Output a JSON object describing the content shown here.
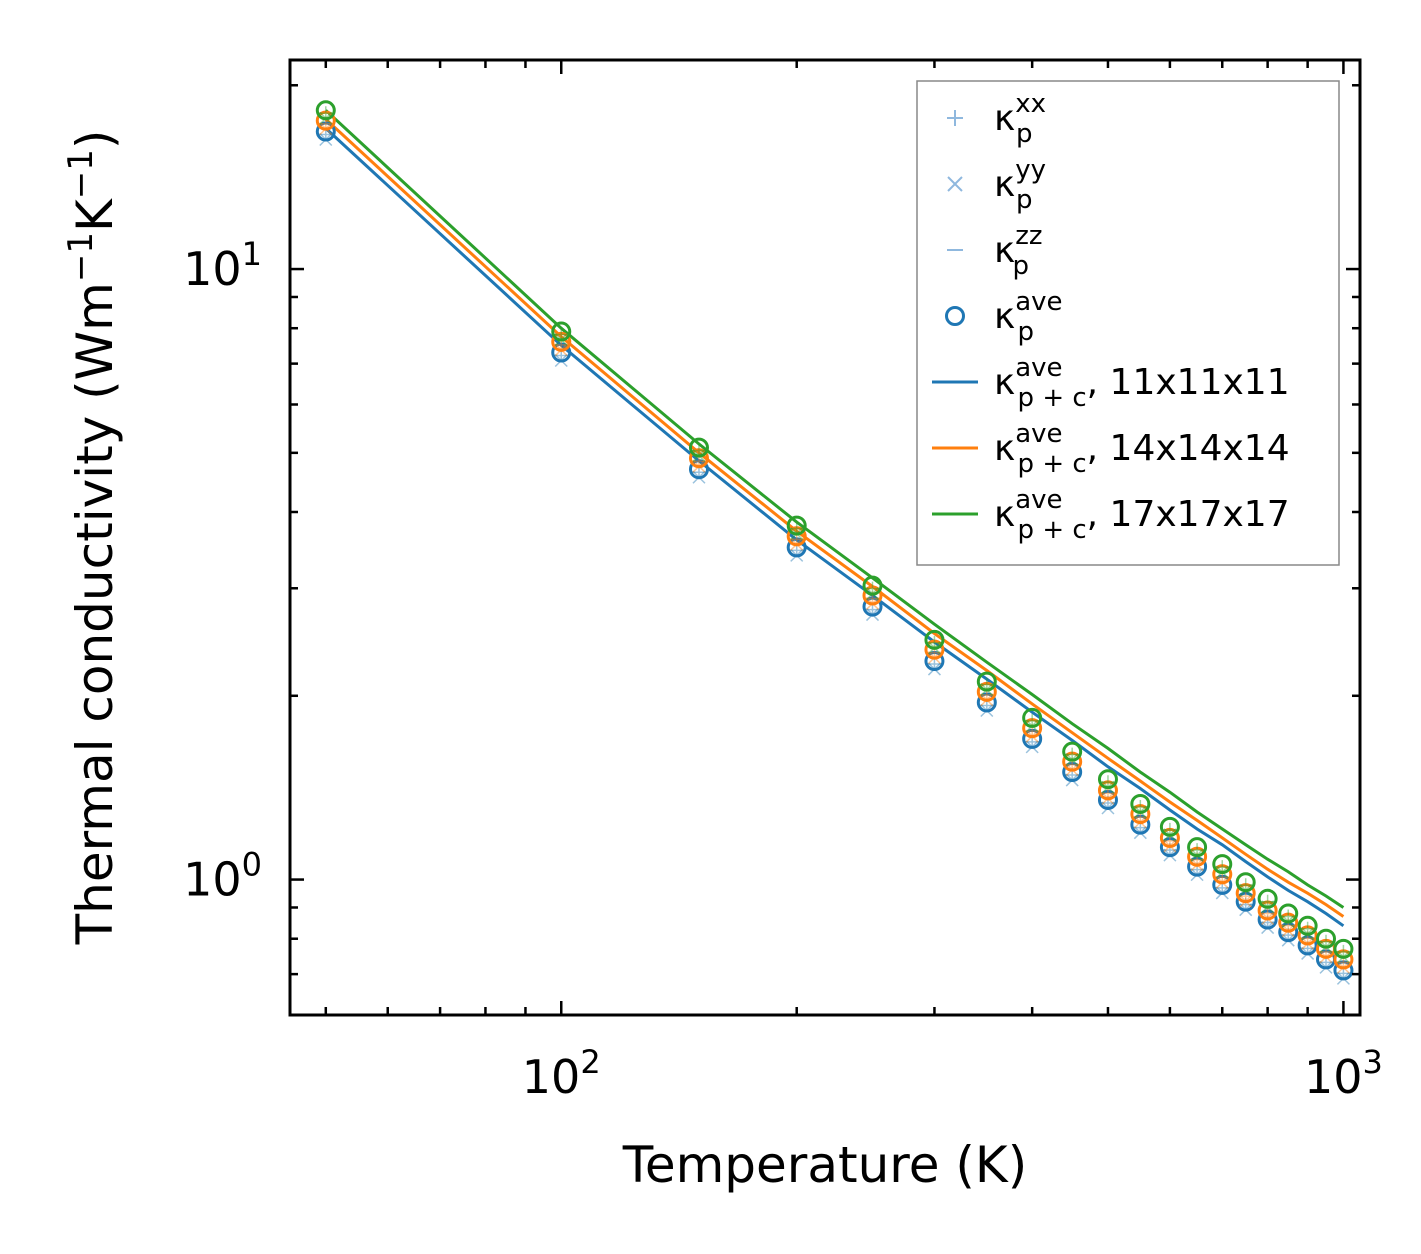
{
  "chart_data": {
    "type": "line",
    "scale": {
      "x": "log",
      "y": "log"
    },
    "xlabel": "Temperature (K)",
    "ylabel": {
      "main": "Thermal conductivity (Wm",
      "sup1": "−1",
      "mid": "K",
      "sup2": "−1",
      "end": ")"
    },
    "xlim": [
      45,
      1050
    ],
    "ylim": [
      0.6,
      22
    ],
    "x_ticks": [
      {
        "base": "10",
        "exp": "2",
        "value": 100
      },
      {
        "base": "10",
        "exp": "3",
        "value": 1000
      }
    ],
    "y_ticks": [
      {
        "base": "10",
        "exp": "0",
        "value": 1
      },
      {
        "base": "10",
        "exp": "1",
        "value": 10
      }
    ],
    "x": [
      50,
      100,
      150,
      200,
      250,
      300,
      350,
      400,
      450,
      500,
      550,
      600,
      650,
      700,
      750,
      800,
      850,
      900,
      950,
      1000
    ],
    "series": [
      {
        "name": "11x11x11",
        "kind": "points",
        "color": "#1f77b4",
        "values": [
          16.8,
          7.3,
          4.7,
          3.5,
          2.8,
          2.28,
          1.95,
          1.7,
          1.5,
          1.35,
          1.23,
          1.13,
          1.05,
          0.98,
          0.92,
          0.86,
          0.82,
          0.78,
          0.74,
          0.71
        ]
      },
      {
        "name": "14x14x14",
        "kind": "points",
        "color": "#ff7f0e",
        "values": [
          17.5,
          7.6,
          4.9,
          3.65,
          2.92,
          2.38,
          2.03,
          1.77,
          1.56,
          1.4,
          1.28,
          1.17,
          1.09,
          1.02,
          0.95,
          0.89,
          0.85,
          0.81,
          0.77,
          0.74
        ]
      },
      {
        "name": "17x17x17",
        "kind": "points",
        "color": "#2ca02c",
        "values": [
          18.2,
          7.9,
          5.1,
          3.8,
          3.03,
          2.47,
          2.11,
          1.84,
          1.62,
          1.46,
          1.33,
          1.22,
          1.13,
          1.06,
          0.99,
          0.93,
          0.88,
          0.84,
          0.8,
          0.77
        ]
      },
      {
        "name": "κ_p+c^ave, 11x11x11",
        "kind": "line",
        "color": "#1f77b4",
        "values": [
          17.0,
          7.5,
          4.85,
          3.6,
          2.92,
          2.45,
          2.13,
          1.88,
          1.69,
          1.53,
          1.41,
          1.3,
          1.21,
          1.14,
          1.07,
          1.01,
          0.96,
          0.92,
          0.88,
          0.84
        ]
      },
      {
        "name": "κ_p+c^ave, 14x14x14",
        "kind": "line",
        "color": "#ff7f0e",
        "values": [
          17.6,
          7.75,
          5.0,
          3.72,
          3.02,
          2.53,
          2.2,
          1.94,
          1.74,
          1.58,
          1.45,
          1.34,
          1.25,
          1.17,
          1.1,
          1.04,
          0.99,
          0.95,
          0.91,
          0.87
        ]
      },
      {
        "name": "κ_p+c^ave, 17x17x17",
        "kind": "line",
        "color": "#2ca02c",
        "values": [
          18.2,
          8.0,
          5.17,
          3.85,
          3.12,
          2.62,
          2.27,
          2.01,
          1.8,
          1.64,
          1.5,
          1.39,
          1.29,
          1.21,
          1.14,
          1.08,
          1.03,
          0.98,
          0.94,
          0.9
        ]
      }
    ],
    "legend": {
      "position": "top-right",
      "entries": [
        {
          "marker": "plus",
          "color": "#8fb8de",
          "sym": "κ",
          "sub": "p",
          "sup": "xx",
          "suffix": ""
        },
        {
          "marker": "x",
          "color": "#8fb8de",
          "sym": "κ",
          "sub": "p",
          "sup": "yy",
          "suffix": ""
        },
        {
          "marker": "dash",
          "color": "#8fb8de",
          "sym": "κ",
          "sub": "p",
          "sup": "zz",
          "suffix": ""
        },
        {
          "marker": "circle",
          "color": "#1f77b4",
          "sym": "κ",
          "sub": "p",
          "sup": "ave",
          "suffix": ""
        },
        {
          "marker": "line",
          "color": "#1f77b4",
          "sym": "κ",
          "sub": "p + c",
          "sup": "ave",
          "suffix": ", 11x11x11"
        },
        {
          "marker": "line",
          "color": "#ff7f0e",
          "sym": "κ",
          "sub": "p + c",
          "sup": "ave",
          "suffix": ", 14x14x14"
        },
        {
          "marker": "line",
          "color": "#2ca02c",
          "sym": "κ",
          "sub": "p + c",
          "sup": "ave",
          "suffix": ", 17x17x17"
        }
      ]
    }
  }
}
